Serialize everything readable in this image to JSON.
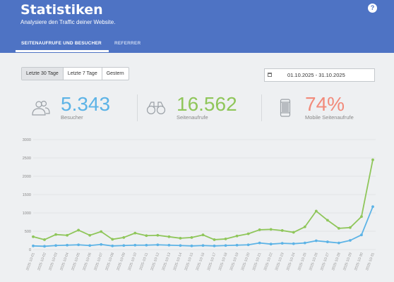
{
  "header": {
    "title": "Statistiken",
    "subtitle": "Analysiere den Traffic deiner Website.",
    "help_symbol": "?"
  },
  "tabs": [
    {
      "label": "SEITENAUFRUFE UND BESUCHER",
      "active": true
    },
    {
      "label": "REFERRER",
      "active": false
    }
  ],
  "range_buttons": [
    {
      "label": "Letzte 30 Tage",
      "active": true
    },
    {
      "label": "Letzte 7 Tage",
      "active": false
    },
    {
      "label": "Gestern",
      "active": false
    }
  ],
  "date_range": "01.10.2025 - 31.10.2025",
  "stats": [
    {
      "value": "5.343",
      "label": "Besucher",
      "color": "#5cb3e6",
      "icon": "users-icon"
    },
    {
      "value": "16.562",
      "label": "Seitenaufrufe",
      "color": "#8fc65a",
      "icon": "binoculars-icon"
    },
    {
      "value": "74%",
      "label": "Mobile Seitenaufrufe",
      "color": "#f28a7a",
      "icon": "smartphone-icon"
    }
  ],
  "chart_data": {
    "type": "line",
    "x": [
      "2025-10-01",
      "2025-10-02",
      "2025-10-03",
      "2025-10-04",
      "2025-10-05",
      "2025-10-06",
      "2025-10-07",
      "2025-10-08",
      "2025-10-09",
      "2025-10-10",
      "2025-10-11",
      "2025-10-12",
      "2025-10-13",
      "2025-10-14",
      "2025-10-15",
      "2025-10-16",
      "2025-10-17",
      "2025-10-18",
      "2025-10-19",
      "2025-10-20",
      "2025-10-21",
      "2025-10-22",
      "2025-10-23",
      "2025-10-24",
      "2025-10-25",
      "2025-10-26",
      "2025-10-27",
      "2025-10-28",
      "2025-10-29",
      "2025-10-30",
      "2025-10-31"
    ],
    "series": [
      {
        "key": "pageviews",
        "color": "#8fc65a",
        "values": [
          350,
          270,
          410,
          390,
          530,
          390,
          490,
          280,
          330,
          450,
          380,
          390,
          350,
          310,
          330,
          400,
          270,
          290,
          370,
          430,
          540,
          550,
          520,
          470,
          620,
          1050,
          800,
          580,
          600,
          900,
          2450
        ]
      },
      {
        "key": "visitors",
        "color": "#5cb3e6",
        "values": [
          100,
          90,
          110,
          120,
          130,
          110,
          140,
          100,
          110,
          120,
          120,
          130,
          120,
          110,
          100,
          110,
          100,
          110,
          120,
          130,
          180,
          150,
          170,
          160,
          180,
          240,
          210,
          180,
          250,
          400,
          1170
        ]
      }
    ],
    "yticks": [
      0,
      500,
      1000,
      1500,
      2000,
      2500,
      3000
    ],
    "ylim": [
      0,
      3000
    ],
    "grid": true
  }
}
